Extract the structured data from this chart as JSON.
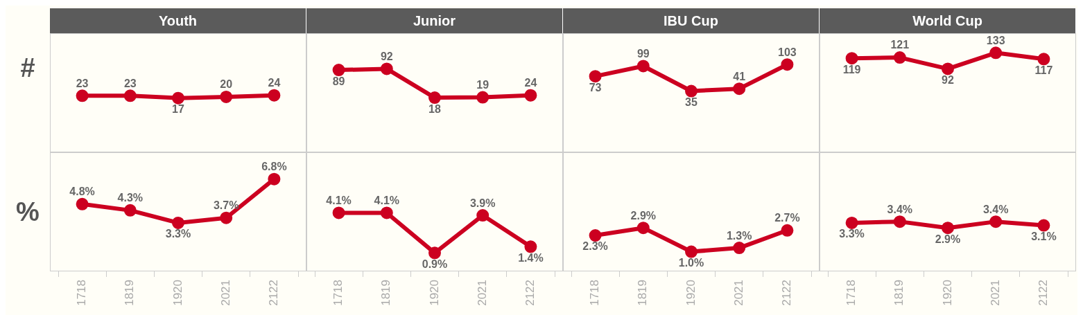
{
  "chart_data": [
    {
      "type": "line",
      "title": "Youth",
      "ylabel": "#",
      "categories": [
        "1718",
        "1819",
        "1920",
        "2021",
        "2122"
      ],
      "values": [
        23,
        23,
        17,
        20,
        24
      ],
      "color": "#cc0020",
      "data_labels": true,
      "marker": "circle",
      "tick_labels": false
    },
    {
      "type": "line",
      "title": "Junior",
      "categories": [
        "1718",
        "1819",
        "1920",
        "2021",
        "2122"
      ],
      "values": [
        89,
        92,
        18,
        19,
        24
      ],
      "color": "#cc0020",
      "data_labels": true,
      "marker": "circle",
      "tick_labels": false
    },
    {
      "type": "line",
      "title": "IBU Cup",
      "categories": [
        "1718",
        "1819",
        "1920",
        "2021",
        "2122"
      ],
      "values": [
        73,
        99,
        35,
        41,
        103
      ],
      "color": "#cc0020",
      "data_labels": true,
      "marker": "circle",
      "tick_labels": false
    },
    {
      "type": "line",
      "title": "World Cup",
      "categories": [
        "1718",
        "1819",
        "1920",
        "2021",
        "2122"
      ],
      "values": [
        119,
        121,
        92,
        133,
        117
      ],
      "color": "#cc0020",
      "data_labels": true,
      "marker": "circle",
      "tick_labels": false
    },
    {
      "type": "line",
      "ylabel": "%",
      "categories": [
        "1718",
        "1819",
        "1920",
        "2021",
        "2122"
      ],
      "values": [
        4.8,
        4.3,
        3.3,
        3.7,
        6.8
      ],
      "value_labels": [
        "4.8%",
        "4.3%",
        "3.3%",
        "3.7%",
        "6.8%"
      ],
      "color": "#cc0020",
      "marker": "circle",
      "tick_labels": "x"
    },
    {
      "type": "line",
      "categories": [
        "1718",
        "1819",
        "1920",
        "2021",
        "2122"
      ],
      "values": [
        4.1,
        4.1,
        0.9,
        3.9,
        1.4
      ],
      "value_labels": [
        "4.1%",
        "4.1%",
        "0.9%",
        "3.9%",
        "1.4%"
      ],
      "color": "#cc0020",
      "marker": "circle",
      "tick_labels": "x"
    },
    {
      "type": "line",
      "categories": [
        "1718",
        "1819",
        "1920",
        "2021",
        "2122"
      ],
      "values": [
        2.3,
        2.9,
        1.0,
        1.3,
        2.7
      ],
      "value_labels": [
        "2.3%",
        "2.9%",
        "1.0%",
        "1.3%",
        "2.7%"
      ],
      "color": "#cc0020",
      "marker": "circle",
      "tick_labels": "x"
    },
    {
      "type": "line",
      "categories": [
        "1718",
        "1819",
        "1920",
        "2021",
        "2122"
      ],
      "values": [
        3.3,
        3.4,
        2.9,
        3.4,
        3.1
      ],
      "value_labels": [
        "3.3%",
        "3.4%",
        "2.9%",
        "3.4%",
        "3.1%"
      ],
      "color": "#cc0020",
      "marker": "circle",
      "tick_labels": "x"
    }
  ]
}
